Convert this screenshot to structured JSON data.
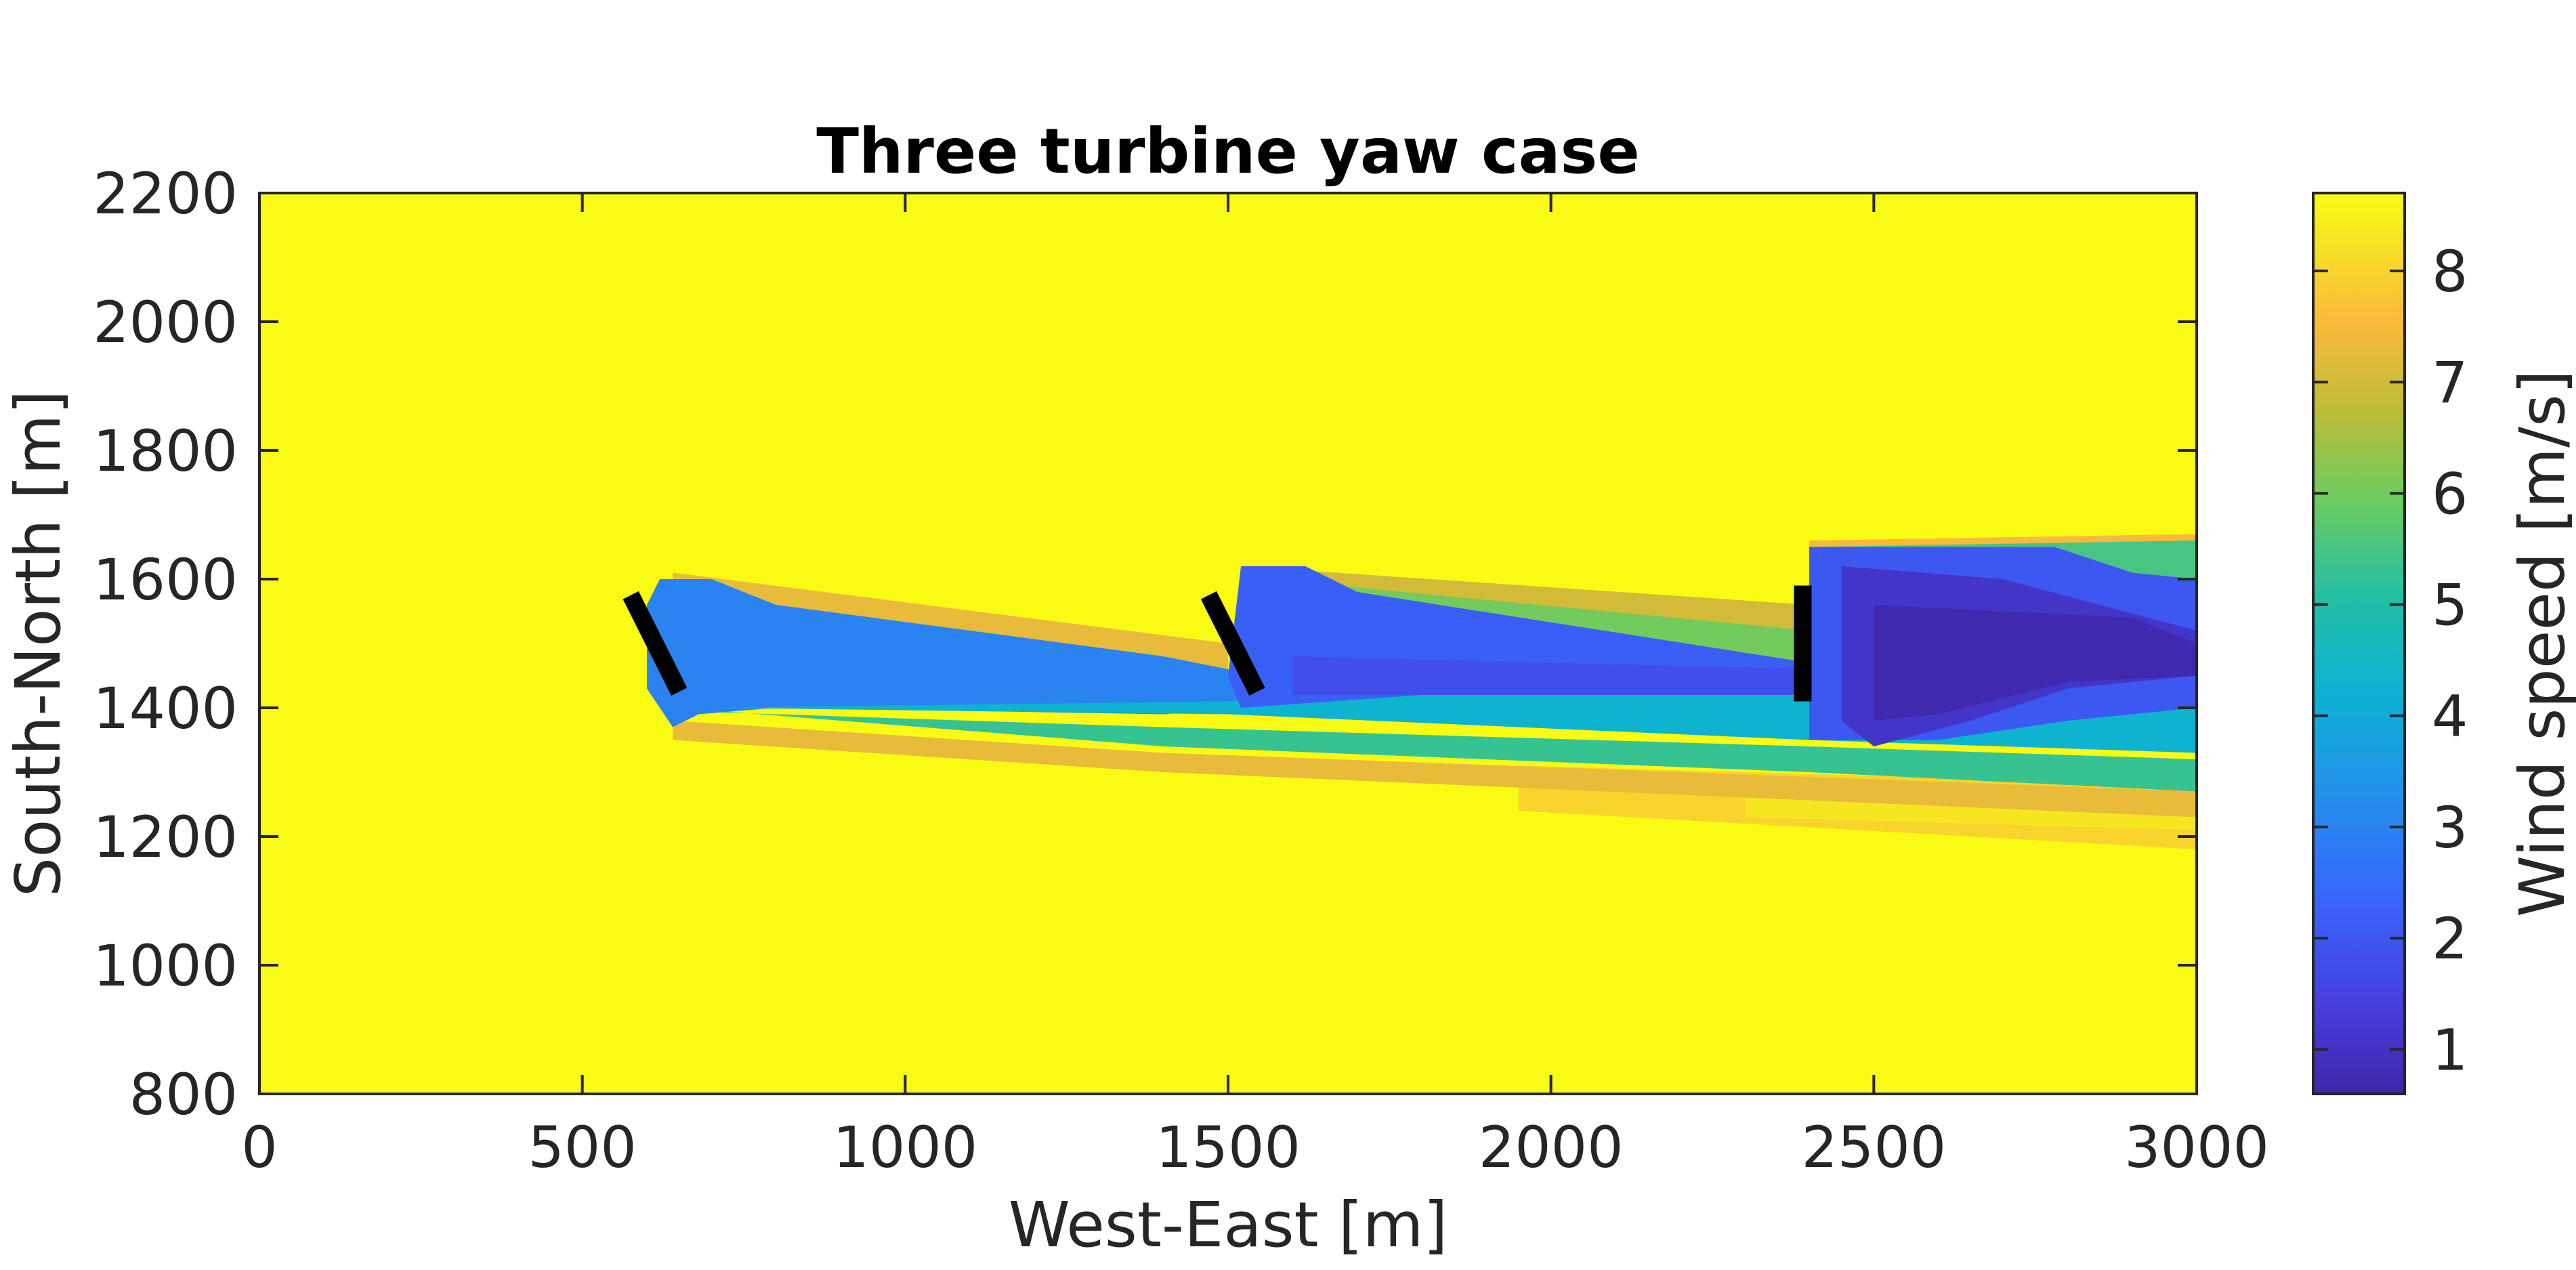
{
  "chart_data": {
    "type": "heatmap",
    "title": "Three turbine yaw case",
    "xlabel": "West-East [m]",
    "ylabel": "South-North [m]",
    "xlim": [
      0,
      3000
    ],
    "ylim": [
      800,
      2200
    ],
    "xticks": [
      "0",
      "500",
      "1000",
      "1500",
      "2000",
      "2500",
      "3000"
    ],
    "yticks": [
      "800",
      "1000",
      "1200",
      "1400",
      "1600",
      "1800",
      "2000",
      "2200"
    ],
    "colorbar": {
      "label": "Wind speed [m/s]",
      "range": [
        0.6,
        8.7
      ],
      "ticks": [
        "1",
        "2",
        "3",
        "4",
        "5",
        "6",
        "7",
        "8"
      ],
      "colormap": "parula"
    },
    "background_speed": 8.7,
    "turbines": [
      {
        "x1": 575,
        "y1": 1575,
        "x2": 650,
        "y2": 1425
      },
      {
        "x1": 1470,
        "y1": 1575,
        "x2": 1545,
        "y2": 1425
      },
      {
        "x1": 2390,
        "y1": 1590,
        "x2": 2390,
        "y2": 1410
      }
    ],
    "wake_regions": [
      {
        "speed": 8.0,
        "points": [
          [
            1950,
            1310
          ],
          [
            3000,
            1280
          ],
          [
            3000,
            1180
          ],
          [
            1950,
            1240
          ]
        ]
      },
      {
        "speed": 8.3,
        "points": [
          [
            2300,
            1270
          ],
          [
            3000,
            1240
          ],
          [
            3000,
            1210
          ],
          [
            2300,
            1230
          ]
        ]
      },
      {
        "speed": 7.3,
        "points": [
          [
            640,
            1610
          ],
          [
            1500,
            1500
          ],
          [
            1500,
            1440
          ],
          [
            640,
            1555
          ]
        ]
      },
      {
        "speed": 7.3,
        "points": [
          [
            640,
            1380
          ],
          [
            1400,
            1330
          ],
          [
            3000,
            1270
          ],
          [
            3000,
            1230
          ],
          [
            1400,
            1300
          ],
          [
            640,
            1350
          ]
        ]
      },
      {
        "speed": 5.3,
        "points": [
          [
            650,
            1400
          ],
          [
            1400,
            1340
          ],
          [
            2400,
            1300
          ],
          [
            3000,
            1270
          ],
          [
            3000,
            1320
          ],
          [
            2400,
            1340
          ],
          [
            1400,
            1370
          ],
          [
            650,
            1395
          ]
        ]
      },
      {
        "speed": 7.0,
        "points": [
          [
            1520,
            1620
          ],
          [
            2400,
            1560
          ],
          [
            2400,
            1470
          ],
          [
            1520,
            1520
          ]
        ]
      },
      {
        "speed": 6.0,
        "points": [
          [
            1560,
            1600
          ],
          [
            2400,
            1520
          ],
          [
            2400,
            1470
          ],
          [
            1560,
            1540
          ]
        ]
      },
      {
        "speed": 7.5,
        "points": [
          [
            2400,
            1660
          ],
          [
            3000,
            1670
          ],
          [
            3000,
            1560
          ],
          [
            2400,
            1580
          ]
        ]
      },
      {
        "speed": 5.5,
        "points": [
          [
            2400,
            1650
          ],
          [
            3000,
            1660
          ],
          [
            3000,
            1600
          ],
          [
            2400,
            1610
          ]
        ]
      },
      {
        "speed": 3.0,
        "points": [
          [
            600,
            1560
          ],
          [
            620,
            1600
          ],
          [
            700,
            1600
          ],
          [
            800,
            1560
          ],
          [
            1400,
            1480
          ],
          [
            1500,
            1460
          ],
          [
            1550,
            1430
          ],
          [
            1550,
            1400
          ],
          [
            1400,
            1390
          ],
          [
            800,
            1400
          ],
          [
            680,
            1390
          ],
          [
            640,
            1370
          ],
          [
            600,
            1430
          ]
        ]
      },
      {
        "speed": 4.3,
        "points": [
          [
            700,
            1400
          ],
          [
            1500,
            1390
          ],
          [
            2400,
            1350
          ],
          [
            3000,
            1330
          ],
          [
            3000,
            1440
          ],
          [
            2400,
            1440
          ],
          [
            1500,
            1410
          ]
        ]
      },
      {
        "speed": 2.2,
        "points": [
          [
            1520,
            1620
          ],
          [
            1620,
            1620
          ],
          [
            1700,
            1580
          ],
          [
            2400,
            1470
          ],
          [
            2400,
            1420
          ],
          [
            1800,
            1420
          ],
          [
            1520,
            1400
          ],
          [
            1500,
            1450
          ]
        ]
      },
      {
        "speed": 1.8,
        "points": [
          [
            1600,
            1480
          ],
          [
            2400,
            1460
          ],
          [
            2400,
            1420
          ],
          [
            1600,
            1420
          ]
        ]
      },
      {
        "speed": 2.0,
        "points": [
          [
            2400,
            1650
          ],
          [
            2780,
            1650
          ],
          [
            2900,
            1610
          ],
          [
            3000,
            1600
          ],
          [
            3000,
            1400
          ],
          [
            2800,
            1380
          ],
          [
            2600,
            1350
          ],
          [
            2400,
            1350
          ]
        ]
      },
      {
        "speed": 1.1,
        "points": [
          [
            2450,
            1620
          ],
          [
            2700,
            1600
          ],
          [
            3000,
            1520
          ],
          [
            3000,
            1450
          ],
          [
            2800,
            1430
          ],
          [
            2650,
            1380
          ],
          [
            2500,
            1340
          ],
          [
            2450,
            1380
          ]
        ]
      },
      {
        "speed": 0.7,
        "points": [
          [
            2500,
            1560
          ],
          [
            2900,
            1540
          ],
          [
            3000,
            1500
          ],
          [
            3000,
            1450
          ],
          [
            2800,
            1440
          ],
          [
            2600,
            1390
          ],
          [
            2500,
            1380
          ]
        ]
      }
    ]
  }
}
